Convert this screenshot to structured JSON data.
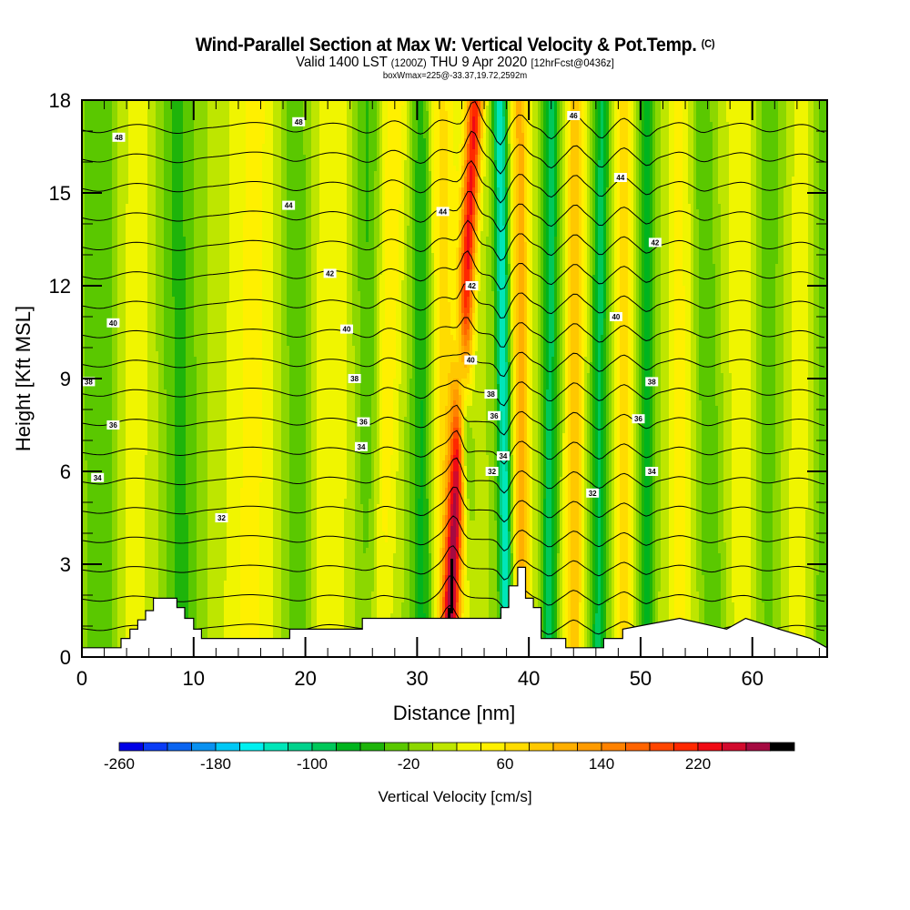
{
  "header": {
    "title": "Wind-Parallel Section at Max W: Vertical Velocity & Pot.Temp.",
    "copyright_mark": "(C)",
    "valid_prefix": "Valid 1400 LST",
    "valid_zulu": "(1200Z)",
    "valid_date": "THU 9 Apr 2020",
    "forecast_info": "[12hrFcst@0436z]",
    "box_info": "boxWmax=225@-33.37,19.72,2592m"
  },
  "chart_data": {
    "type": "heatmap",
    "title": "Wind-Parallel Section at Max W: Vertical Velocity & Pot.Temp.",
    "xlabel": "Distance [nm]",
    "ylabel": "Height [Kft MSL]",
    "xlim": [
      0,
      66.7
    ],
    "ylim": [
      0,
      18
    ],
    "xticks": [
      "0",
      "10",
      "20",
      "30",
      "40",
      "50",
      "60"
    ],
    "xtick_values": [
      0,
      10,
      20,
      30,
      40,
      50,
      60
    ],
    "xminor_step": 2,
    "yticks": [
      "0",
      "3",
      "6",
      "9",
      "12",
      "15",
      "18"
    ],
    "ytick_values": [
      0,
      3,
      6,
      9,
      12,
      15,
      18
    ],
    "yminor_step": 1,
    "colorbar": {
      "label": "Vertical Velocity [cm/s]",
      "min": -260,
      "max": 300,
      "step": 20,
      "tick_labels": [
        "-260",
        "-180",
        "-100",
        "-20",
        "60",
        "140",
        "220"
      ],
      "tick_values": [
        -260,
        -180,
        -100,
        -20,
        60,
        140,
        220
      ],
      "colors": [
        "#0000e6",
        "#0a3cf5",
        "#0a64f0",
        "#0a91f0",
        "#00c8f5",
        "#00f0f0",
        "#00e6b9",
        "#00d28c",
        "#00c85a",
        "#00b41e",
        "#1eb40a",
        "#5ac800",
        "#8cd700",
        "#bee600",
        "#f0f500",
        "#fff000",
        "#ffdc00",
        "#ffc800",
        "#ffaf00",
        "#ff9b00",
        "#ff8200",
        "#ff6400",
        "#ff4600",
        "#ff2800",
        "#f00a14",
        "#d20a2d",
        "#a50a41",
        "#000000"
      ]
    },
    "velocity_field": {
      "background_cm_s": 0,
      "stripes": [
        {
          "x_top": 1.5,
          "x_bottom": 1.8,
          "width": 1.6,
          "amp": -40
        },
        {
          "x_top": 5.0,
          "x_bottom": 4.5,
          "width": 1.8,
          "amp": 30
        },
        {
          "x_top": 8.5,
          "x_bottom": 9.0,
          "width": 1.6,
          "amp": -45
        },
        {
          "x_top": 15.5,
          "x_bottom": 15.0,
          "width": 2.5,
          "amp": 45
        },
        {
          "x_top": 19.0,
          "x_bottom": 19.5,
          "width": 1.4,
          "amp": -40
        },
        {
          "x_top": 22.5,
          "x_bottom": 22.0,
          "width": 1.8,
          "amp": 40
        },
        {
          "x_top": 25.5,
          "x_bottom": 26.0,
          "width": 1.2,
          "amp": -45
        },
        {
          "x_top": 28.0,
          "x_bottom": 26.5,
          "width": 1.2,
          "amp": 60
        },
        {
          "x_top": 30.5,
          "x_bottom": 30.5,
          "width": 1.0,
          "amp": -75
        },
        {
          "x_top": 32.0,
          "x_bottom": 32.8,
          "width": 1.6,
          "amp": 70
        },
        {
          "x_top": 35.2,
          "x_bottom": 32.8,
          "width": 0.75,
          "amp": 220
        },
        {
          "x_top": 33.2,
          "x_bottom": 34.8,
          "width": 0.6,
          "amp": -170,
          "z_center": 8.5,
          "z_width": 3.0
        },
        {
          "x_top": 37.4,
          "x_bottom": 38.0,
          "width": 0.6,
          "amp": -140
        },
        {
          "x_top": 39.2,
          "x_bottom": 39.4,
          "width": 0.8,
          "amp": 110
        },
        {
          "x_top": 42.0,
          "x_bottom": 41.8,
          "width": 0.7,
          "amp": -90
        },
        {
          "x_top": 44.2,
          "x_bottom": 44.0,
          "width": 0.8,
          "amp": 100
        },
        {
          "x_top": 46.5,
          "x_bottom": 46.2,
          "width": 0.7,
          "amp": -85
        },
        {
          "x_top": 48.5,
          "x_bottom": 48.5,
          "width": 0.8,
          "amp": 80
        },
        {
          "x_top": 50.6,
          "x_bottom": 50.5,
          "width": 0.7,
          "amp": -70
        },
        {
          "x_top": 53.5,
          "x_bottom": 53.5,
          "width": 1.2,
          "amp": 45
        },
        {
          "x_top": 55.5,
          "x_bottom": 56.5,
          "width": 1.0,
          "amp": -40
        },
        {
          "x_top": 59.0,
          "x_bottom": 59.5,
          "width": 1.5,
          "amp": 40
        },
        {
          "x_top": 61.5,
          "x_bottom": 61.0,
          "width": 1.3,
          "amp": -35
        },
        {
          "x_top": 64.5,
          "x_bottom": 64.0,
          "width": 1.4,
          "amp": 30
        },
        {
          "x_top": 66.5,
          "x_bottom": 66.5,
          "width": 1.0,
          "amp": -40
        }
      ]
    },
    "terrain_kft": {
      "x_nm": [
        0,
        3.5,
        3.5,
        4.3,
        4.3,
        5.0,
        5.0,
        5.7,
        5.7,
        6.4,
        6.4,
        8.5,
        8.5,
        9.2,
        9.2,
        10.0,
        10.0,
        10.7,
        10.7,
        18.6,
        18.6,
        25.1,
        25.1,
        37.5,
        37.5,
        38.2,
        38.2,
        39.0,
        39.0,
        39.7,
        39.7,
        40.4,
        40.4,
        41.1,
        41.1,
        43.3,
        43.3,
        46.0,
        46.0,
        46.7,
        46.7,
        48.4,
        48.4,
        48.4,
        53.5,
        53.5,
        57.7,
        57.7,
        59.4,
        59.4,
        62.4,
        62.4,
        65.2,
        65.2,
        66.7
      ],
      "z_kft": [
        0.3,
        0.3,
        0.6,
        0.6,
        0.9,
        0.9,
        1.2,
        1.2,
        1.5,
        1.5,
        1.9,
        1.9,
        1.6,
        1.6,
        1.25,
        1.25,
        0.9,
        0.9,
        0.6,
        0.6,
        0.9,
        0.9,
        1.25,
        1.25,
        1.6,
        1.6,
        2.3,
        2.3,
        2.9,
        2.9,
        1.9,
        1.9,
        1.6,
        1.6,
        0.6,
        0.6,
        0.3,
        0.3,
        0.3,
        0.3,
        0.6,
        0.6,
        0.9,
        0.9,
        1.25,
        1.25,
        0.9,
        0.9,
        1.25,
        1.25,
        0.9,
        0.9,
        0.6,
        0.6,
        0.3
      ]
    },
    "theta_contours": {
      "levels": [
        31,
        32,
        33,
        34,
        35,
        36,
        37,
        38,
        39,
        40,
        41,
        42,
        43,
        44,
        45,
        46,
        47,
        48,
        49
      ],
      "labels": [
        {
          "text": "48",
          "x_nm": 3.3,
          "z_kft": 16.8
        },
        {
          "text": "48",
          "x_nm": 19.4,
          "z_kft": 17.3
        },
        {
          "text": "44",
          "x_nm": 18.5,
          "z_kft": 14.6
        },
        {
          "text": "44",
          "x_nm": 32.3,
          "z_kft": 14.4
        },
        {
          "text": "42",
          "x_nm": 22.2,
          "z_kft": 12.4
        },
        {
          "text": "40",
          "x_nm": 2.8,
          "z_kft": 10.8
        },
        {
          "text": "40",
          "x_nm": 23.7,
          "z_kft": 10.6
        },
        {
          "text": "38",
          "x_nm": 0.6,
          "z_kft": 8.9
        },
        {
          "text": "38",
          "x_nm": 24.4,
          "z_kft": 9.0
        },
        {
          "text": "36",
          "x_nm": 2.8,
          "z_kft": 7.5
        },
        {
          "text": "36",
          "x_nm": 25.2,
          "z_kft": 7.6
        },
        {
          "text": "34",
          "x_nm": 25.0,
          "z_kft": 6.8
        },
        {
          "text": "34",
          "x_nm": 1.4,
          "z_kft": 5.8
        },
        {
          "text": "32",
          "x_nm": 12.5,
          "z_kft": 4.5
        },
        {
          "text": "46",
          "x_nm": 44.0,
          "z_kft": 17.5
        },
        {
          "text": "44",
          "x_nm": 48.2,
          "z_kft": 15.5
        },
        {
          "text": "42",
          "x_nm": 34.9,
          "z_kft": 12.0
        },
        {
          "text": "42",
          "x_nm": 51.3,
          "z_kft": 13.4
        },
        {
          "text": "40",
          "x_nm": 34.8,
          "z_kft": 9.6
        },
        {
          "text": "40",
          "x_nm": 47.8,
          "z_kft": 11.0
        },
        {
          "text": "38",
          "x_nm": 36.6,
          "z_kft": 8.5
        },
        {
          "text": "38",
          "x_nm": 51.0,
          "z_kft": 8.9
        },
        {
          "text": "36",
          "x_nm": 36.9,
          "z_kft": 7.8
        },
        {
          "text": "36",
          "x_nm": 49.8,
          "z_kft": 7.7
        },
        {
          "text": "34",
          "x_nm": 37.7,
          "z_kft": 6.5
        },
        {
          "text": "34",
          "x_nm": 51.0,
          "z_kft": 6.0
        },
        {
          "text": "32",
          "x_nm": 36.7,
          "z_kft": 6.0
        },
        {
          "text": "32",
          "x_nm": 45.7,
          "z_kft": 5.3
        }
      ]
    }
  }
}
